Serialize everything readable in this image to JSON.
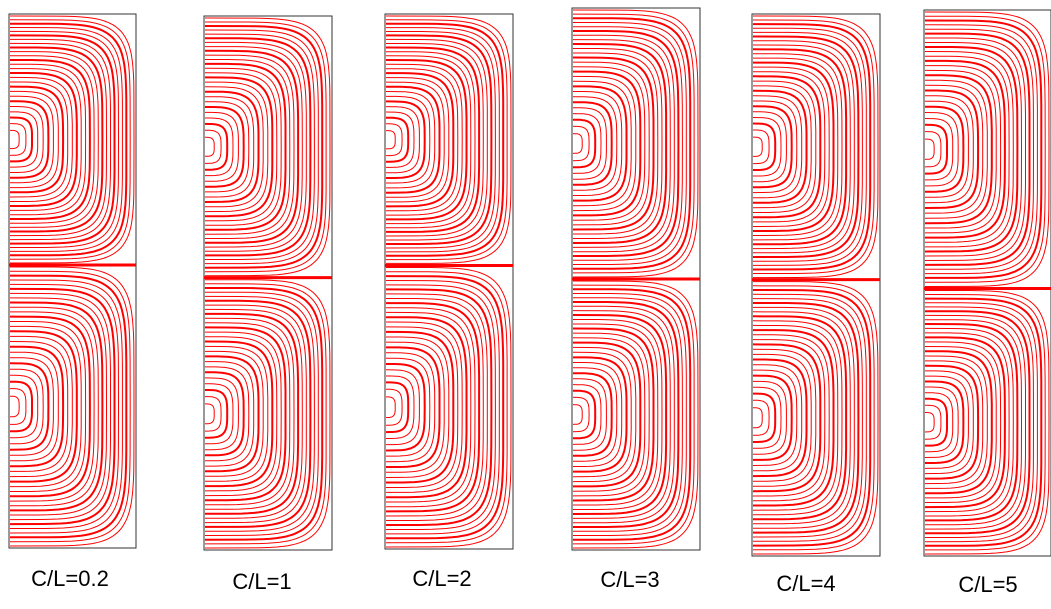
{
  "panels": [
    {
      "label": "C/L=0.2"
    },
    {
      "label": "C/L=1"
    },
    {
      "label": "C/L=2"
    },
    {
      "label": "C/L=3"
    },
    {
      "label": "C/L=4"
    },
    {
      "label": "C/L=5"
    }
  ]
}
